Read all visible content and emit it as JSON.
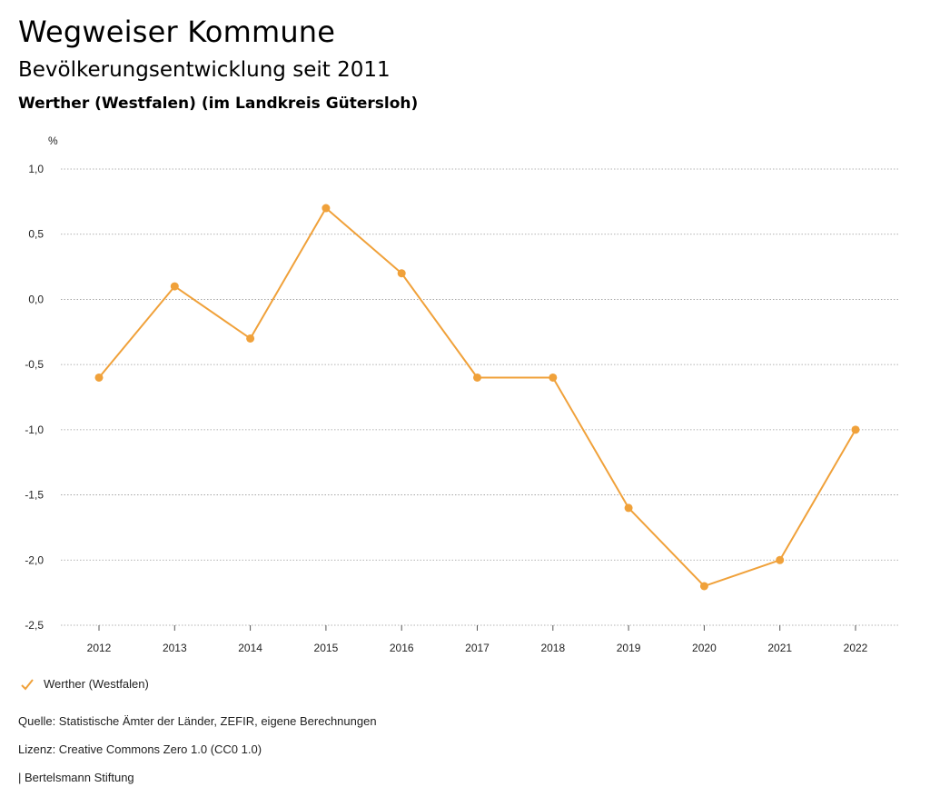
{
  "header": {
    "title": "Wegweiser Kommune",
    "subtitle": "Bevölkerungsentwicklung seit 2011",
    "region": "Werther (Westfalen) (im Landkreis Gütersloh)"
  },
  "chart_data": {
    "type": "line",
    "title": "Bevölkerungsentwicklung seit 2011",
    "ylabel": "%",
    "xlabel": "",
    "categories": [
      "2012",
      "2013",
      "2014",
      "2015",
      "2016",
      "2017",
      "2018",
      "2019",
      "2020",
      "2021",
      "2022"
    ],
    "series": [
      {
        "name": "Werther (Westfalen)",
        "color": "#f0a13a",
        "values": [
          -0.6,
          0.1,
          -0.3,
          0.7,
          0.2,
          -0.6,
          -0.6,
          -1.6,
          -2.2,
          -2.0,
          -1.0
        ]
      }
    ],
    "yticks": [
      1.0,
      0.5,
      0.0,
      -0.5,
      -1.0,
      -1.5,
      -2.0,
      -2.5
    ],
    "ytick_labels": [
      "1,0",
      "0,5",
      "0,0",
      "-0,5",
      "-1,0",
      "-1,5",
      "-2,0",
      "-2,5"
    ],
    "ylim": [
      -2.5,
      1.0
    ],
    "grid": true,
    "legend_position": "bottom-left"
  },
  "legend": {
    "label": "Werther (Westfalen)"
  },
  "footer": {
    "source": "Quelle: Statistische Ämter der Länder, ZEFIR, eigene Berechnungen",
    "license": "Lizenz: Creative Commons Zero 1.0 (CC0 1.0)",
    "publisher": "| Bertelsmann Stiftung"
  }
}
